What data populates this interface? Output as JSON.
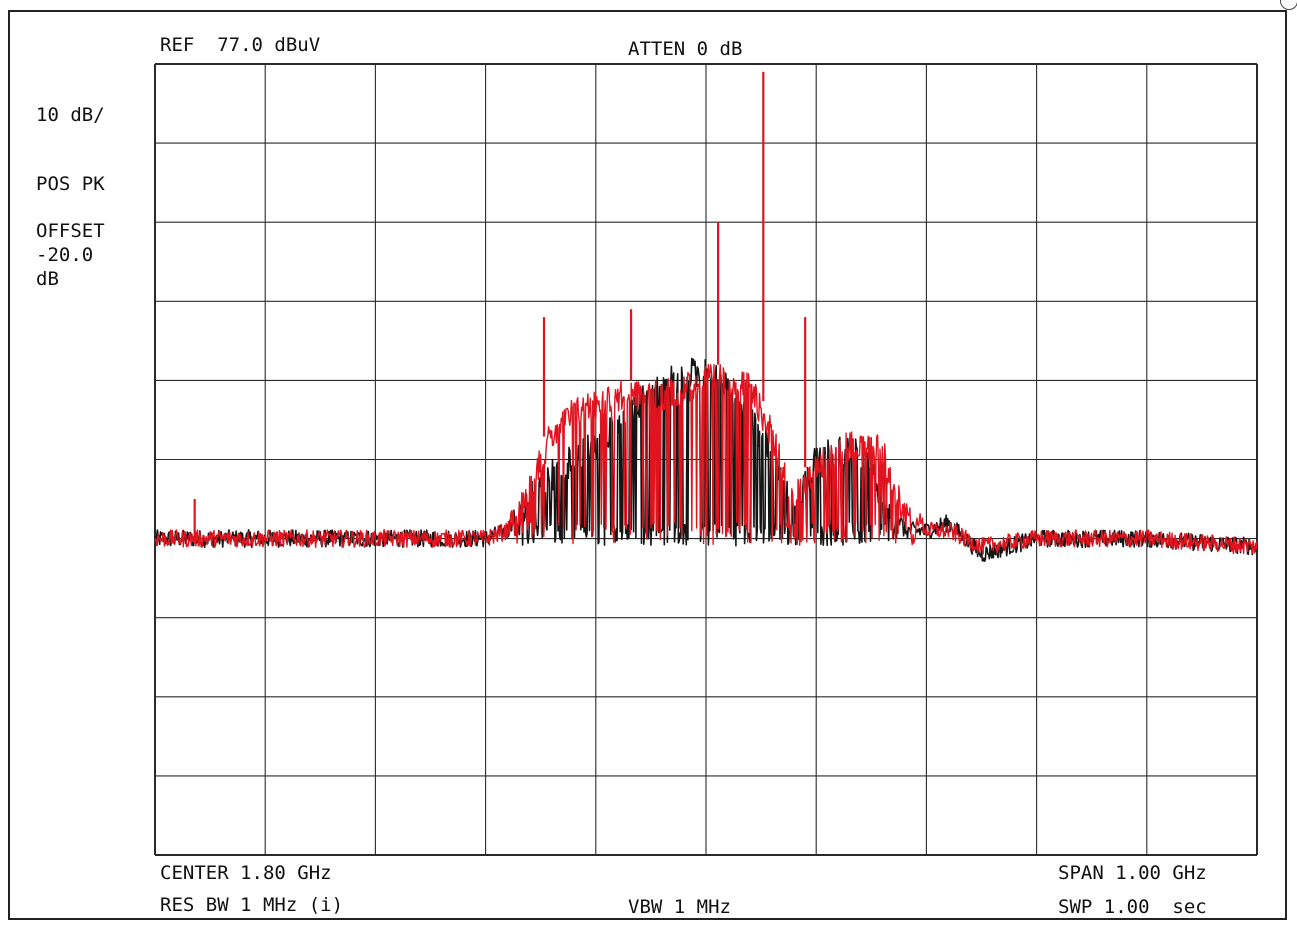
{
  "header": {
    "ref": "REF  77.0 dBuV",
    "atten": "ATTEN 0 dB"
  },
  "left_panel": {
    "scale": "10 dB/",
    "detector": "POS PK",
    "offset": "OFFSET\n-20.0\ndB"
  },
  "footer": {
    "center": "CENTER 1.80 GHz",
    "span": "SPAN 1.00 GHz",
    "res_bw": "RES BW 1 MHz (i)",
    "vbw": "VBW 1 MHz",
    "swp": "SWP 1.00  sec"
  },
  "colors": {
    "trace_black": "#151515",
    "trace_red": "#e0141e",
    "grid": "#2a2a2a",
    "background": "#ffffff"
  },
  "chart_data": {
    "type": "line",
    "x_unit": "GHz",
    "y_unit": "dBuV",
    "xlim": [
      1.3,
      2.3
    ],
    "ylim": [
      -23.0,
      77.0
    ],
    "grid": true,
    "divisions": {
      "x": 10,
      "y": 10
    },
    "series": [
      {
        "color": "#151515",
        "noise_floor": 17.0,
        "x": [
          1.3,
          1.6,
          1.62,
          1.64,
          1.66,
          1.68,
          1.7,
          1.72,
          1.74,
          1.76,
          1.78,
          1.8,
          1.82,
          1.84,
          1.86,
          1.88,
          1.9,
          1.92,
          1.94,
          1.96,
          1.98,
          2.0,
          2.02,
          2.05,
          2.1,
          2.2,
          2.3
        ],
        "y": [
          17,
          17,
          18,
          24,
          27,
          29,
          31,
          33,
          36,
          38,
          40,
          40,
          38,
          34,
          30,
          22,
          29,
          30,
          30,
          24,
          18,
          18,
          19,
          15,
          17,
          17,
          16
        ]
      },
      {
        "color": "#e0141e",
        "noise_floor": 17.0,
        "x": [
          1.3,
          1.6,
          1.62,
          1.64,
          1.66,
          1.68,
          1.7,
          1.72,
          1.74,
          1.76,
          1.78,
          1.8,
          1.82,
          1.84,
          1.86,
          1.88,
          1.9,
          1.92,
          1.94,
          1.96,
          1.98,
          2.0,
          2.02,
          2.05,
          2.1,
          2.2,
          2.3
        ],
        "y": [
          17,
          17,
          18,
          26,
          32,
          35,
          36,
          37,
          37,
          37,
          38,
          39,
          39,
          38,
          32,
          24,
          28,
          30,
          31,
          30,
          22,
          18,
          18,
          16,
          17,
          17,
          16
        ],
        "spikes": [
          {
            "x": 1.336,
            "y": 22
          },
          {
            "x": 1.653,
            "y": 45
          },
          {
            "x": 1.732,
            "y": 46
          },
          {
            "x": 1.811,
            "y": 57
          },
          {
            "x": 1.852,
            "y": 76
          },
          {
            "x": 1.89,
            "y": 45
          }
        ]
      }
    ]
  }
}
